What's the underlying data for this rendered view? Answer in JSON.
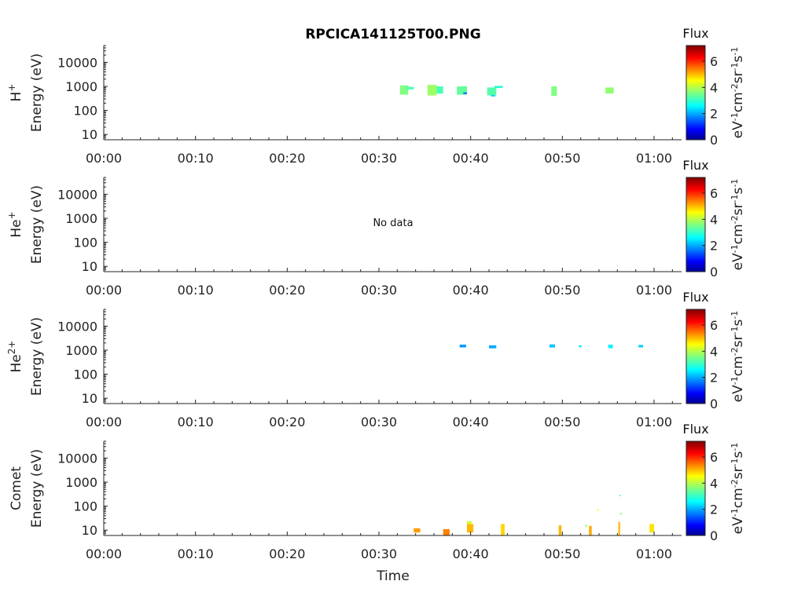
{
  "chart_data": {
    "type": "heatmap",
    "title": "RPCICA141125T00.PNG",
    "xlabel": "Time",
    "x_ticks": [
      "00:00",
      "00:10",
      "00:20",
      "00:30",
      "00:40",
      "00:50",
      "01:00"
    ],
    "x_range_min": [
      0,
      63
    ],
    "y_ticks": [
      "10",
      "100",
      "1000",
      "10000"
    ],
    "y_range_ev": [
      6,
      50000
    ],
    "y_scale": "log",
    "colorbar": {
      "label": "Flux",
      "unit_prefix": "eV",
      "unit_parts": [
        "-1",
        "cm",
        "-2",
        "sr",
        "-1",
        "s",
        "-1"
      ],
      "ticks": [
        "0",
        "2",
        "4",
        "6"
      ],
      "range": [
        0,
        7.2
      ],
      "colormap": "jet"
    },
    "panels": [
      {
        "species": "H",
        "charge": "+",
        "ylabel": "Energy (eV)",
        "note": "",
        "cells": [
          {
            "t0": 32.3,
            "t1": 33.2,
            "e0": 450,
            "e1": 1100,
            "v": 3.6
          },
          {
            "t0": 33.0,
            "t1": 33.8,
            "e0": 750,
            "e1": 950,
            "v": 3.2
          },
          {
            "t0": 35.3,
            "t1": 36.3,
            "e0": 420,
            "e1": 1150,
            "v": 3.8
          },
          {
            "t0": 36.3,
            "t1": 37.0,
            "e0": 500,
            "e1": 1000,
            "v": 3.2
          },
          {
            "t0": 38.5,
            "t1": 39.6,
            "e0": 450,
            "e1": 1000,
            "v": 3.4
          },
          {
            "t0": 39.2,
            "t1": 39.6,
            "e0": 480,
            "e1": 560,
            "v": 1.6
          },
          {
            "t0": 41.8,
            "t1": 42.8,
            "e0": 420,
            "e1": 900,
            "v": 3.3
          },
          {
            "t0": 42.6,
            "t1": 43.5,
            "e0": 850,
            "e1": 1050,
            "v": 3.0
          },
          {
            "t0": 42.2,
            "t1": 42.7,
            "e0": 380,
            "e1": 430,
            "v": 2.4
          },
          {
            "t0": 48.8,
            "t1": 49.4,
            "e0": 400,
            "e1": 1000,
            "v": 3.6
          },
          {
            "t0": 54.7,
            "t1": 55.6,
            "e0": 500,
            "e1": 900,
            "v": 3.7
          }
        ]
      },
      {
        "species": "He",
        "charge": "+",
        "ylabel": "Energy (eV)",
        "note": "No data",
        "cells": []
      },
      {
        "species": "He",
        "charge": "2+",
        "ylabel": "Energy (eV)",
        "note": "",
        "cells": [
          {
            "t0": 38.8,
            "t1": 39.5,
            "e0": 1300,
            "e1": 1700,
            "v": 2.0
          },
          {
            "t0": 42.0,
            "t1": 42.8,
            "e0": 1200,
            "e1": 1600,
            "v": 2.1
          },
          {
            "t0": 48.6,
            "t1": 49.2,
            "e0": 1300,
            "e1": 1750,
            "v": 2.3
          },
          {
            "t0": 51.8,
            "t1": 52.1,
            "e0": 1350,
            "e1": 1600,
            "v": 2.5
          },
          {
            "t0": 55.0,
            "t1": 55.5,
            "e0": 1200,
            "e1": 1700,
            "v": 2.6
          },
          {
            "t0": 58.3,
            "t1": 58.8,
            "e0": 1300,
            "e1": 1650,
            "v": 2.4
          }
        ]
      },
      {
        "species": "Comet",
        "charge": "",
        "ylabel": "Energy (eV)",
        "note": "",
        "cells": [
          {
            "t0": 33.8,
            "t1": 34.5,
            "e0": 8,
            "e1": 12,
            "v": 5.2
          },
          {
            "t0": 37.0,
            "t1": 37.7,
            "e0": 6,
            "e1": 11,
            "v": 5.4
          },
          {
            "t0": 39.6,
            "t1": 40.3,
            "e0": 8,
            "e1": 18,
            "v": 5.0
          },
          {
            "t0": 39.6,
            "t1": 40.1,
            "e0": 18,
            "e1": 24,
            "v": 4.2
          },
          {
            "t0": 43.3,
            "t1": 43.7,
            "e0": 6,
            "e1": 18,
            "v": 4.8
          },
          {
            "t0": 49.6,
            "t1": 49.9,
            "e0": 6,
            "e1": 16,
            "v": 5.0
          },
          {
            "t0": 52.5,
            "t1": 52.7,
            "e0": 14,
            "e1": 17,
            "v": 3.8
          },
          {
            "t0": 52.9,
            "t1": 53.2,
            "e0": 6,
            "e1": 15,
            "v": 5.1
          },
          {
            "t0": 56.1,
            "t1": 56.3,
            "e0": 6,
            "e1": 22,
            "v": 5.0
          },
          {
            "t0": 56.2,
            "t1": 56.4,
            "e0": 260,
            "e1": 290,
            "v": 3.5
          },
          {
            "t0": 56.3,
            "t1": 56.5,
            "e0": 45,
            "e1": 52,
            "v": 3.5
          },
          {
            "t0": 53.8,
            "t1": 54.0,
            "e0": 66,
            "e1": 72,
            "v": 4.5
          },
          {
            "t0": 59.5,
            "t1": 60.0,
            "e0": 8,
            "e1": 18,
            "v": 4.7
          }
        ]
      }
    ]
  }
}
